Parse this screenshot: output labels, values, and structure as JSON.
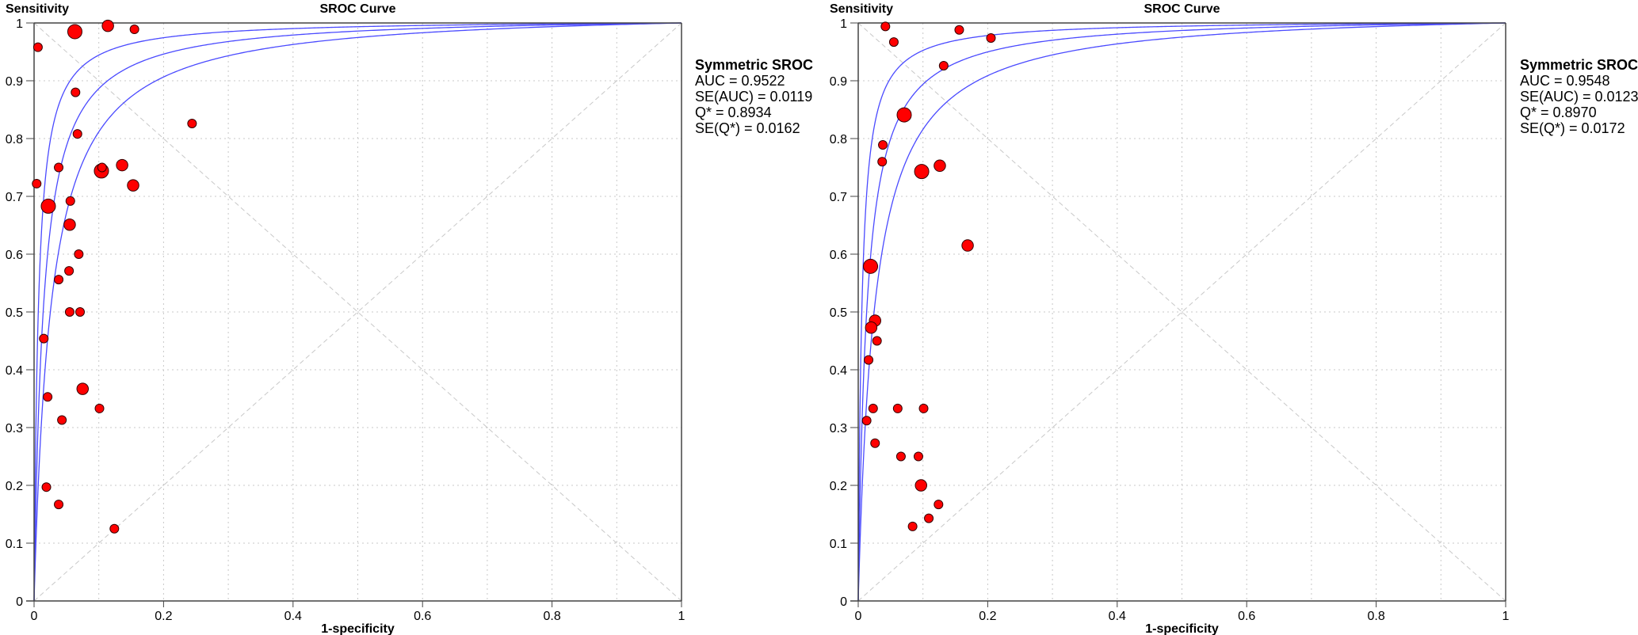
{
  "chart_data": [
    {
      "type": "scatter",
      "title": "SROC Curve",
      "xlabel": "1-specificity",
      "ylabel": "Sensitivity",
      "xlim": [
        0,
        1
      ],
      "ylim": [
        0,
        1
      ],
      "xticks": [
        "0",
        "0.2",
        "0.4",
        "0.6",
        "0.8",
        "1"
      ],
      "yticks": [
        "0",
        "0.1",
        "0.2",
        "0.3",
        "0.4",
        "0.5",
        "0.6",
        "0.7",
        "0.8",
        "0.9",
        "1"
      ],
      "grid": true,
      "legend": {
        "title": "Symmetric SROC",
        "lines": [
          "AUC = 0.9522",
          "SE(AUC) = 0.0119",
          "Q* = 0.8934",
          "SE(Q*) = 0.0162"
        ],
        "position": "right"
      },
      "q_star": 0.8934,
      "se_q_star": 0.0162,
      "curve_color": "#4a4aff",
      "point_color": "#ff0000",
      "points": [
        {
          "x": 0.063,
          "y": 0.985,
          "w": 2
        },
        {
          "x": 0.114,
          "y": 0.995,
          "w": 1.5
        },
        {
          "x": 0.155,
          "y": 0.989,
          "w": 1
        },
        {
          "x": 0.006,
          "y": 0.958,
          "w": 1
        },
        {
          "x": 0.064,
          "y": 0.88,
          "w": 1
        },
        {
          "x": 0.067,
          "y": 0.808,
          "w": 1
        },
        {
          "x": 0.244,
          "y": 0.826,
          "w": 1
        },
        {
          "x": 0.038,
          "y": 0.75,
          "w": 1
        },
        {
          "x": 0.104,
          "y": 0.744,
          "w": 2
        },
        {
          "x": 0.105,
          "y": 0.75,
          "w": 1
        },
        {
          "x": 0.136,
          "y": 0.754,
          "w": 1.5
        },
        {
          "x": 0.153,
          "y": 0.719,
          "w": 1.5
        },
        {
          "x": 0.004,
          "y": 0.722,
          "w": 1
        },
        {
          "x": 0.022,
          "y": 0.683,
          "w": 2
        },
        {
          "x": 0.056,
          "y": 0.692,
          "w": 1
        },
        {
          "x": 0.055,
          "y": 0.651,
          "w": 1.5
        },
        {
          "x": 0.069,
          "y": 0.6,
          "w": 1
        },
        {
          "x": 0.054,
          "y": 0.571,
          "w": 1
        },
        {
          "x": 0.038,
          "y": 0.556,
          "w": 1
        },
        {
          "x": 0.055,
          "y": 0.5,
          "w": 1
        },
        {
          "x": 0.071,
          "y": 0.5,
          "w": 1
        },
        {
          "x": 0.015,
          "y": 0.454,
          "w": 1
        },
        {
          "x": 0.075,
          "y": 0.367,
          "w": 1.5
        },
        {
          "x": 0.021,
          "y": 0.353,
          "w": 1
        },
        {
          "x": 0.101,
          "y": 0.333,
          "w": 1
        },
        {
          "x": 0.043,
          "y": 0.313,
          "w": 1
        },
        {
          "x": 0.019,
          "y": 0.197,
          "w": 1
        },
        {
          "x": 0.038,
          "y": 0.167,
          "w": 1
        },
        {
          "x": 0.124,
          "y": 0.125,
          "w": 1
        }
      ]
    },
    {
      "type": "scatter",
      "title": "SROC Curve",
      "xlabel": "1-specificity",
      "ylabel": "Sensitivity",
      "xlim": [
        0,
        1
      ],
      "ylim": [
        0,
        1
      ],
      "xticks": [
        "0",
        "0.2",
        "0.4",
        "0.6",
        "0.8",
        "1"
      ],
      "yticks": [
        "0",
        "0.1",
        "0.2",
        "0.3",
        "0.4",
        "0.5",
        "0.6",
        "0.7",
        "0.8",
        "0.9",
        "1"
      ],
      "grid": true,
      "legend": {
        "title": "Symmetric SROC",
        "lines": [
          "AUC = 0.9548",
          "SE(AUC) = 0.0123",
          "Q* = 0.8970",
          "SE(Q*) = 0.0172"
        ],
        "position": "right"
      },
      "q_star": 0.897,
      "se_q_star": 0.0172,
      "curve_color": "#4a4aff",
      "point_color": "#ff0000",
      "points": [
        {
          "x": 0.042,
          "y": 0.994,
          "w": 1
        },
        {
          "x": 0.055,
          "y": 0.967,
          "w": 1
        },
        {
          "x": 0.156,
          "y": 0.988,
          "w": 1
        },
        {
          "x": 0.205,
          "y": 0.974,
          "w": 1
        },
        {
          "x": 0.132,
          "y": 0.926,
          "w": 1
        },
        {
          "x": 0.071,
          "y": 0.841,
          "w": 2
        },
        {
          "x": 0.038,
          "y": 0.789,
          "w": 1
        },
        {
          "x": 0.037,
          "y": 0.76,
          "w": 1
        },
        {
          "x": 0.098,
          "y": 0.743,
          "w": 2
        },
        {
          "x": 0.126,
          "y": 0.753,
          "w": 1.5
        },
        {
          "x": 0.169,
          "y": 0.615,
          "w": 1.5
        },
        {
          "x": 0.019,
          "y": 0.579,
          "w": 2
        },
        {
          "x": 0.026,
          "y": 0.485,
          "w": 1.5
        },
        {
          "x": 0.02,
          "y": 0.473,
          "w": 1.5
        },
        {
          "x": 0.029,
          "y": 0.45,
          "w": 1
        },
        {
          "x": 0.016,
          "y": 0.417,
          "w": 1
        },
        {
          "x": 0.023,
          "y": 0.333,
          "w": 1
        },
        {
          "x": 0.061,
          "y": 0.333,
          "w": 1
        },
        {
          "x": 0.101,
          "y": 0.333,
          "w": 1
        },
        {
          "x": 0.013,
          "y": 0.312,
          "w": 1
        },
        {
          "x": 0.026,
          "y": 0.273,
          "w": 1
        },
        {
          "x": 0.066,
          "y": 0.25,
          "w": 1
        },
        {
          "x": 0.093,
          "y": 0.25,
          "w": 1
        },
        {
          "x": 0.097,
          "y": 0.2,
          "w": 1.5
        },
        {
          "x": 0.124,
          "y": 0.167,
          "w": 1
        },
        {
          "x": 0.109,
          "y": 0.143,
          "w": 1
        },
        {
          "x": 0.084,
          "y": 0.129,
          "w": 1
        }
      ]
    }
  ]
}
